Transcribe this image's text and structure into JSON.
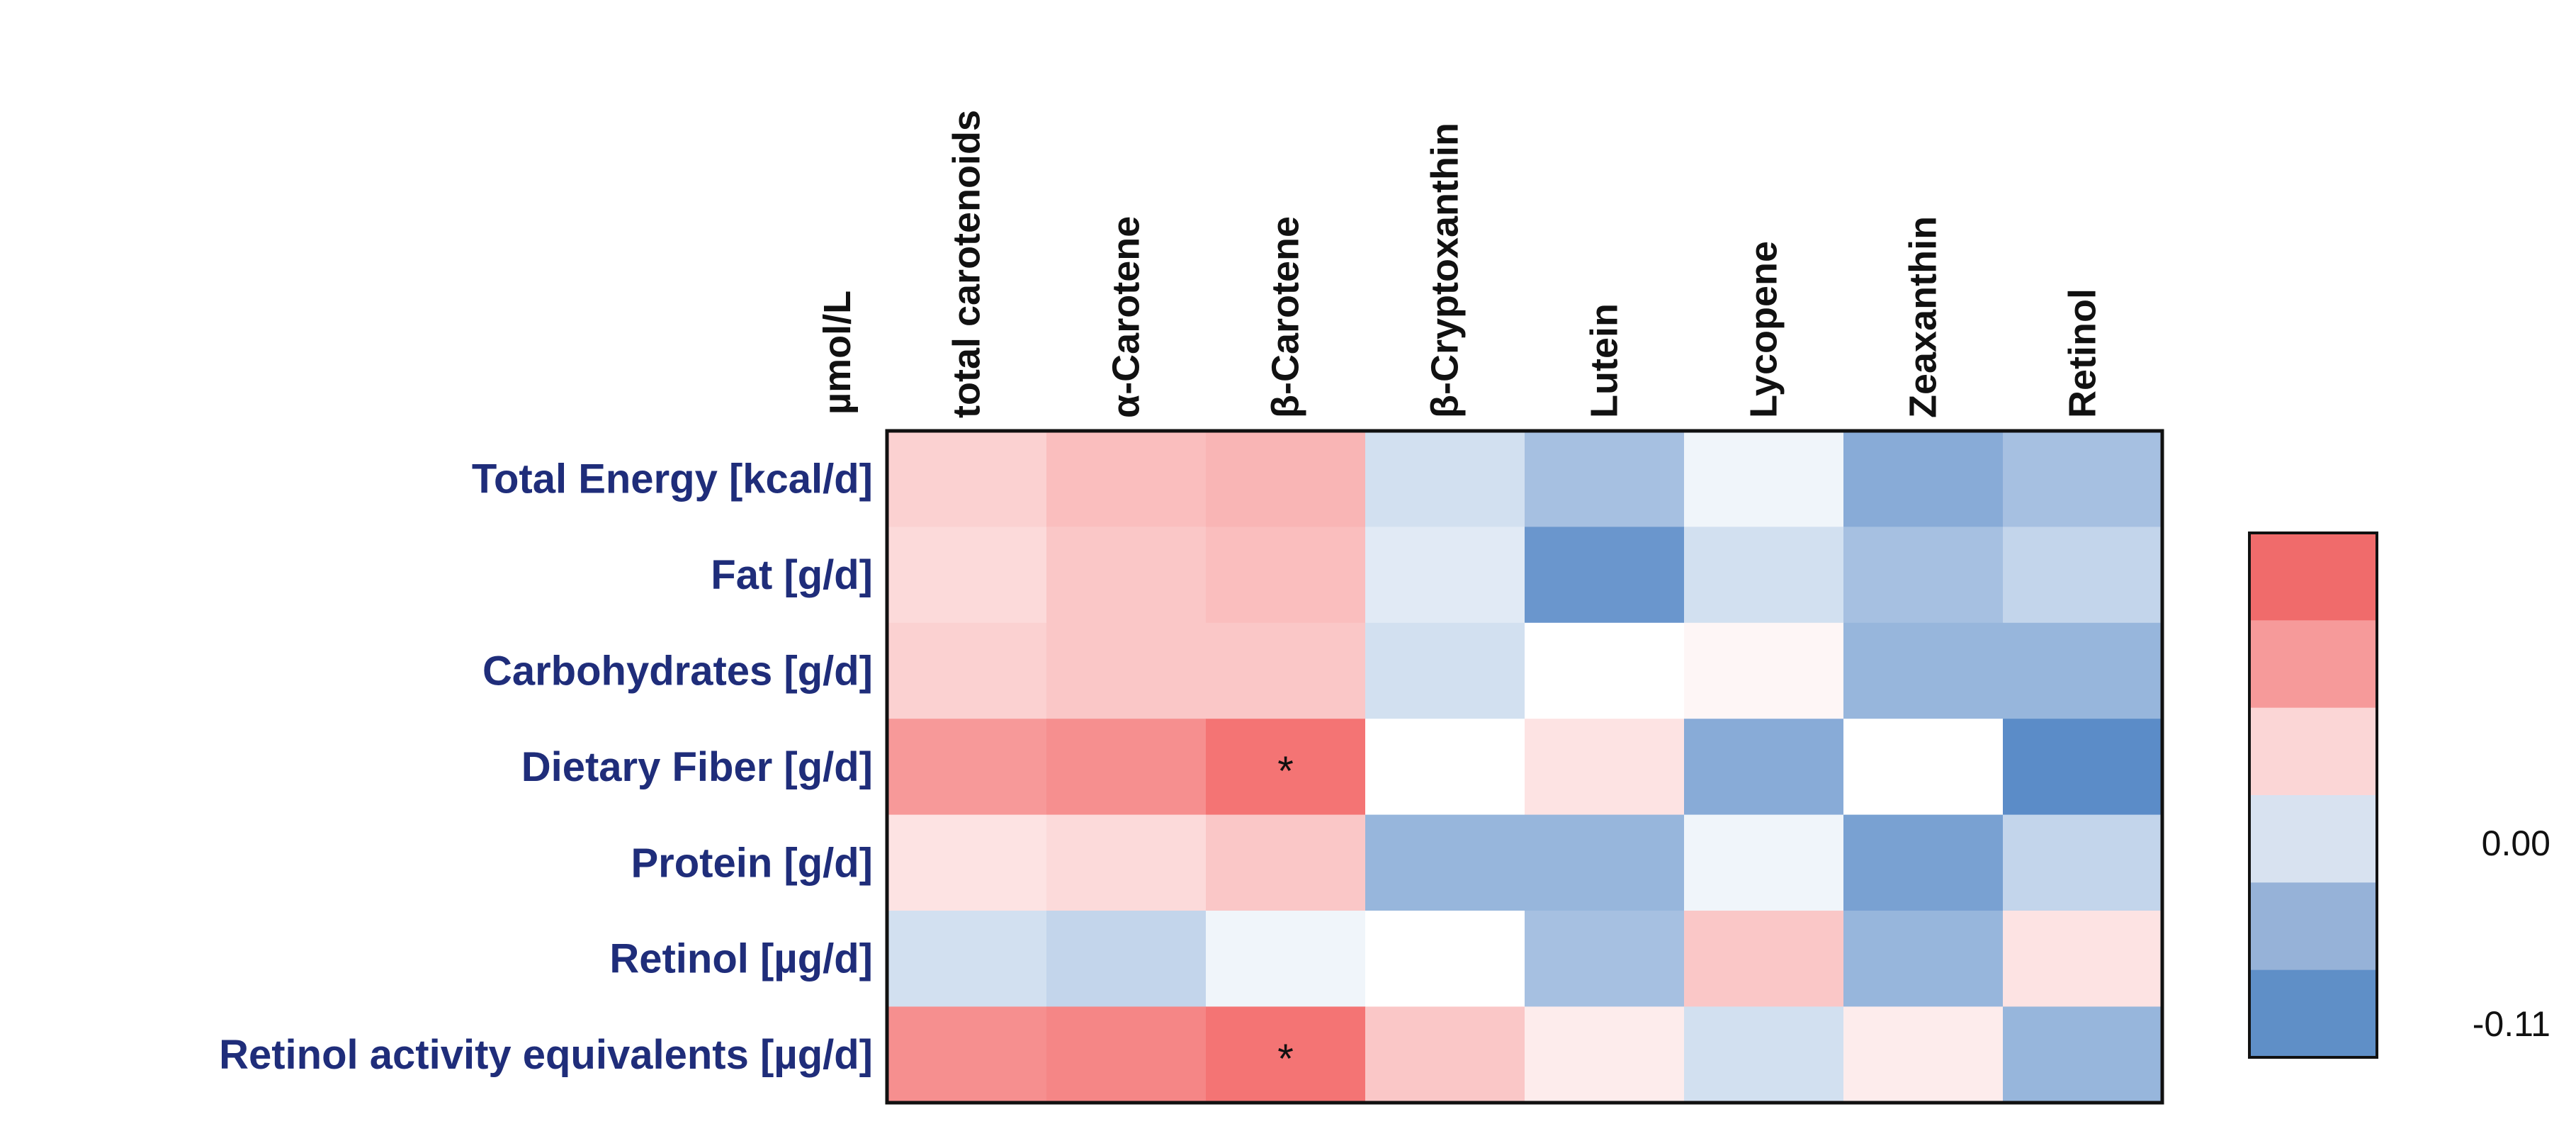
{
  "chart_data": {
    "type": "heatmap",
    "unit_label": "µmol/L",
    "columns": [
      "total carotenoids",
      "α-Carotene",
      "β-Carotene",
      "β-Cryptoxanthin",
      "Lutein",
      "Lycopene",
      "Zeaxanthin",
      "Retinol"
    ],
    "rows": [
      "Total Energy [kcal/d]",
      "Fat [g/d]",
      "Carbohydrates [g/d]",
      "Dietary Fiber [g/d]",
      "Protein [g/d]",
      "Retinol [µg/d]",
      "Retinol activity equivalents [µg/d]"
    ],
    "values": [
      [
        0.05,
        0.07,
        0.08,
        -0.03,
        -0.06,
        -0.01,
        -0.08,
        -0.06
      ],
      [
        0.04,
        0.06,
        0.07,
        -0.02,
        -0.1,
        -0.03,
        -0.06,
        -0.04
      ],
      [
        0.05,
        0.06,
        0.06,
        -0.03,
        0.0,
        0.01,
        -0.07,
        -0.07
      ],
      [
        0.11,
        0.12,
        0.15,
        0.0,
        0.03,
        -0.08,
        0.0,
        -0.11
      ],
      [
        0.03,
        0.04,
        0.06,
        -0.07,
        -0.07,
        -0.01,
        -0.09,
        -0.04
      ],
      [
        -0.03,
        -0.04,
        -0.01,
        0.0,
        -0.06,
        0.06,
        -0.07,
        0.03
      ],
      [
        0.12,
        0.13,
        0.15,
        0.06,
        0.02,
        -0.03,
        0.02,
        -0.07
      ]
    ],
    "significant": [
      [
        false,
        false,
        false,
        false,
        false,
        false,
        false,
        false
      ],
      [
        false,
        false,
        false,
        false,
        false,
        false,
        false,
        false
      ],
      [
        false,
        false,
        false,
        false,
        false,
        false,
        false,
        false
      ],
      [
        false,
        false,
        true,
        false,
        false,
        false,
        false,
        false
      ],
      [
        false,
        false,
        false,
        false,
        false,
        false,
        false,
        false
      ],
      [
        false,
        false,
        false,
        false,
        false,
        false,
        false,
        false
      ],
      [
        false,
        false,
        true,
        false,
        false,
        false,
        false,
        false
      ]
    ],
    "significance_marker": "*",
    "colorbar": {
      "range": [
        -0.11,
        0.17
      ],
      "tick_labels": [
        "0.00",
        "-0.11"
      ],
      "colors": [
        "#f06b6b",
        "#f69a9a",
        "#fbd6d6",
        "#d8e2f0",
        "#96b2d8",
        "#5f8fc7"
      ]
    },
    "color_scale": {
      "negative": "#5b8cc8",
      "neutral": "#ffffff",
      "positive": "#f26161"
    }
  }
}
